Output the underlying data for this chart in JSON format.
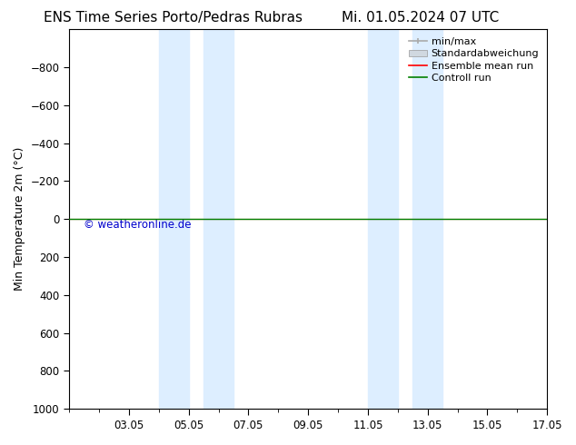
{
  "title_left": "ENS Time Series Porto/Pedras Rubras",
  "title_right": "Mi. 01.05.2024 07 UTC",
  "ylabel": "Min Temperature 2m (°C)",
  "watermark": "© weatheronline.de",
  "ylim_bottom": -1000,
  "ylim_top": 1000,
  "yticks": [
    -800,
    -600,
    -400,
    -200,
    0,
    200,
    400,
    600,
    800,
    1000
  ],
  "xlim": [
    0,
    16
  ],
  "xtick_positions": [
    2,
    4,
    6,
    8,
    10,
    12,
    14,
    16
  ],
  "xtick_labels": [
    "03.05",
    "05.05",
    "07.05",
    "09.05",
    "11.05",
    "13.05",
    "15.05",
    "17.05"
  ],
  "shaded_bands": [
    {
      "xstart": 3.0,
      "xend": 4.0,
      "color": "#ddeeff"
    },
    {
      "xstart": 4.0,
      "xend": 5.5,
      "color": "#ddeeff"
    },
    {
      "xstart": 10.0,
      "xend": 11.0,
      "color": "#ddeeff"
    },
    {
      "xstart": 11.0,
      "xend": 12.5,
      "color": "#ddeeff"
    }
  ],
  "control_run_y": 0,
  "ensemble_mean_y": 0,
  "legend_colors_minmax": "#aaaaaa",
  "legend_colors_std": "#cccccc",
  "legend_colors_ensemble": "#ff0000",
  "legend_colors_control": "#008000",
  "background_color": "#ffffff",
  "title_fontsize": 11,
  "axis_label_fontsize": 9,
  "tick_fontsize": 8.5,
  "legend_fontsize": 8,
  "watermark_color": "#0000cc",
  "watermark_fontsize": 8.5
}
